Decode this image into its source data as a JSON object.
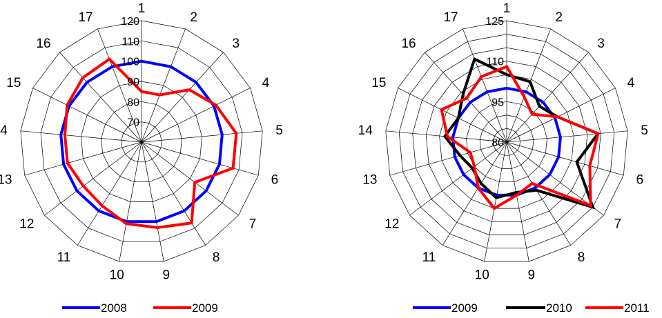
{
  "chart_data": [
    {
      "type": "radar",
      "categories": [
        "1",
        "2",
        "3",
        "4",
        "5",
        "6",
        "7",
        "8",
        "9",
        "10",
        "11",
        "12",
        "13",
        "14",
        "15",
        "16",
        "17"
      ],
      "rmin": 60,
      "rmax": 120,
      "rings": [
        60,
        70,
        80,
        90,
        100,
        110,
        120
      ],
      "tick_labels": [
        "70",
        "80",
        "90",
        "100",
        "110",
        "120"
      ],
      "series": [
        {
          "name": "2008",
          "color": "#0000ff",
          "values": [
            100,
            100,
            100,
            100,
            100,
            100,
            100,
            100,
            100,
            100,
            100,
            100,
            100,
            100,
            100,
            100,
            100
          ]
        },
        {
          "name": "2009",
          "color": "#ff0000",
          "values": [
            85,
            85,
            95,
            101,
            107,
            107,
            93,
            107,
            103,
            101,
            97,
            96,
            98,
            98,
            101,
            103,
            104
          ]
        }
      ],
      "legend": "bottom"
    },
    {
      "type": "radar",
      "categories": [
        "1",
        "2",
        "3",
        "4",
        "5",
        "6",
        "7",
        "8",
        "9",
        "10",
        "11",
        "12",
        "13",
        "14",
        "15",
        "16",
        "17"
      ],
      "rmin": 80,
      "rmax": 125,
      "rings": [
        80,
        85,
        90,
        95,
        100,
        105,
        110,
        115,
        120,
        125
      ],
      "tick_labels": [
        "80",
        "95",
        "110",
        "125"
      ],
      "series": [
        {
          "name": "2009",
          "color": "#0000ff",
          "values": [
            100,
            100,
            100,
            100,
            100,
            100,
            100,
            100,
            100,
            100,
            100,
            100,
            100,
            100,
            100,
            100,
            100
          ]
        },
        {
          "name": "2010",
          "color": "#000000",
          "values": [
            105,
            104,
            98,
            101,
            114,
            107,
            120,
            101,
            99,
            101,
            98,
            96,
            98,
            103,
            100,
            104,
            113
          ]
        },
        {
          "name": "2011",
          "color": "#ff0000",
          "values": [
            108,
            98,
            94,
            101,
            114,
            112,
            119,
            98,
            100,
            105,
            100,
            95,
            94,
            102,
            107,
            102,
            106
          ]
        }
      ],
      "legend": "bottom"
    }
  ]
}
